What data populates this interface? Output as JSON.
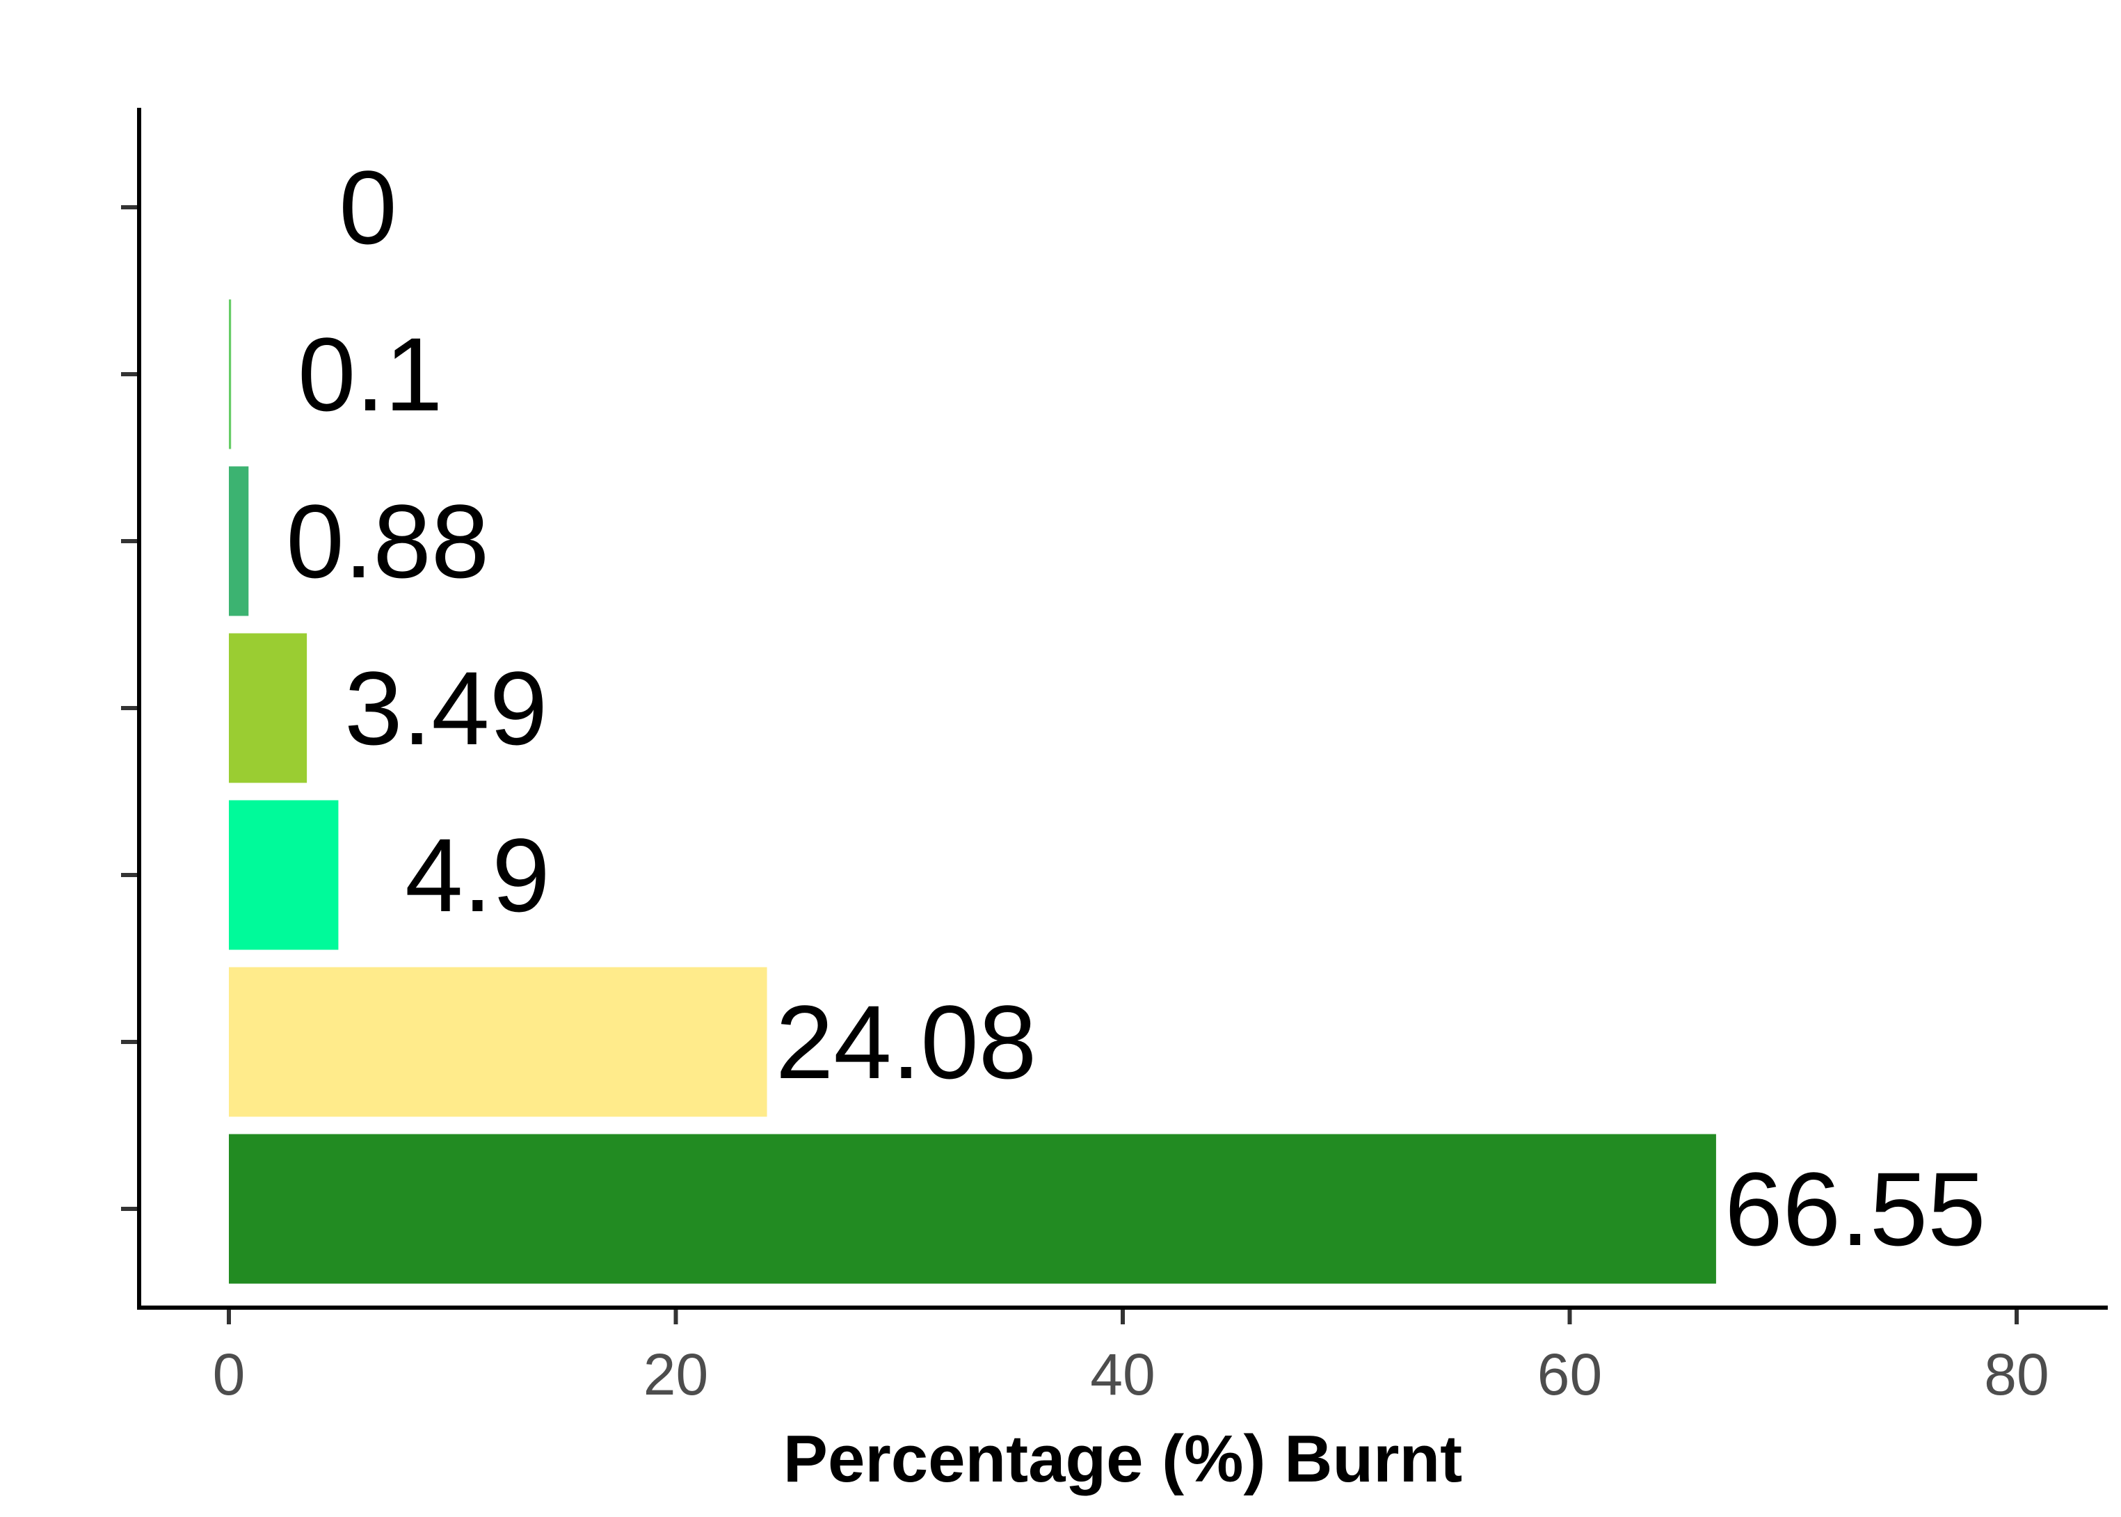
{
  "chart_data": {
    "type": "bar",
    "orientation": "horizontal",
    "values": [
      66.55,
      24.08,
      4.9,
      3.49,
      0.88,
      0.1,
      0
    ],
    "value_labels": [
      "66.55",
      "24.08",
      "4.9",
      "3.49",
      "0.88",
      "0.1",
      "0"
    ],
    "colors": [
      "#228B22",
      "#FFEB8B",
      "#00FA9A",
      "#9ACD32",
      "#3CB371",
      "#66CC66",
      "#808080"
    ],
    "xlabel": "Percentage (%) Burnt",
    "ylabel": "",
    "xlim": [
      0,
      82
    ],
    "xticks": [
      0,
      20,
      40,
      60,
      80
    ],
    "grid": false,
    "legend": "none"
  }
}
